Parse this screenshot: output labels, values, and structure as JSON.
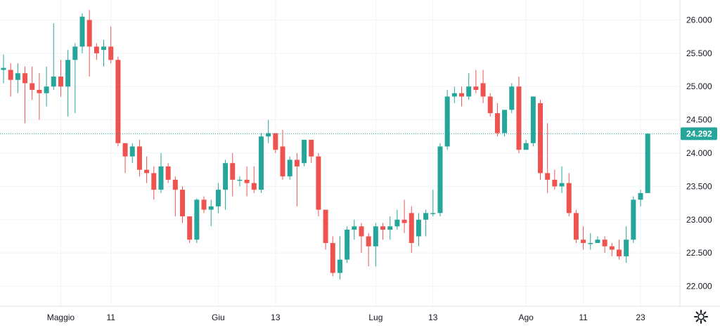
{
  "chart_data": {
    "type": "candlestick",
    "y_range": [
      21.7,
      26.3
    ],
    "y_ticks": [
      {
        "value": 26.0,
        "label": "26.000"
      },
      {
        "value": 25.5,
        "label": "25.500"
      },
      {
        "value": 25.0,
        "label": "25.000"
      },
      {
        "value": 24.5,
        "label": "24.500"
      },
      {
        "value": 24.0,
        "label": "24.000"
      },
      {
        "value": 23.5,
        "label": "23.500"
      },
      {
        "value": 23.0,
        "label": "23.000"
      },
      {
        "value": 22.5,
        "label": "22.500"
      },
      {
        "value": 22.0,
        "label": "22.000"
      }
    ],
    "x_ticks": [
      {
        "index": 8,
        "label": "Maggio"
      },
      {
        "index": 15,
        "label": "11"
      },
      {
        "index": 30,
        "label": "Giu"
      },
      {
        "index": 38,
        "label": "13"
      },
      {
        "index": 52,
        "label": "Lug"
      },
      {
        "index": 60,
        "label": "13"
      },
      {
        "index": 73,
        "label": "Ago"
      },
      {
        "index": 81,
        "label": "11"
      },
      {
        "index": 89,
        "label": "23"
      }
    ],
    "last_price": {
      "value": 24.292,
      "label": "24.292"
    },
    "colors": {
      "up": "#26a69a",
      "down": "#ef5350",
      "grid": "#f0f3fa",
      "axis_text": "#131722"
    },
    "candles": [
      [
        25.25,
        25.28,
        25.48,
        25.05
      ],
      [
        25.25,
        25.1,
        25.35,
        24.85
      ],
      [
        25.1,
        25.2,
        25.35,
        24.9
      ],
      [
        25.2,
        25.05,
        25.3,
        24.45
      ],
      [
        25.05,
        24.95,
        25.3,
        24.8
      ],
      [
        24.95,
        24.9,
        25.2,
        24.5
      ],
      [
        24.9,
        25.0,
        25.3,
        24.7
      ],
      [
        25.0,
        25.15,
        25.95,
        24.95
      ],
      [
        25.15,
        25.0,
        25.4,
        24.85
      ],
      [
        25.0,
        25.4,
        25.55,
        24.55
      ],
      [
        25.4,
        25.6,
        25.65,
        24.6
      ],
      [
        25.6,
        26.05,
        26.1,
        25.5
      ],
      [
        26.0,
        25.6,
        26.15,
        25.15
      ],
      [
        25.6,
        25.5,
        25.65,
        25.4
      ],
      [
        25.55,
        25.6,
        25.7,
        25.3
      ],
      [
        25.6,
        25.4,
        25.9,
        25.35
      ],
      [
        25.4,
        24.15,
        25.45,
        24.1
      ],
      [
        24.15,
        23.95,
        24.15,
        23.7
      ],
      [
        23.95,
        24.1,
        24.15,
        23.85
      ],
      [
        24.1,
        23.75,
        24.2,
        23.65
      ],
      [
        23.75,
        23.7,
        23.95,
        23.55
      ],
      [
        23.7,
        23.45,
        23.8,
        23.3
      ],
      [
        23.45,
        23.8,
        24.0,
        23.4
      ],
      [
        23.8,
        23.6,
        23.85,
        23.55
      ],
      [
        23.6,
        23.45,
        23.65,
        23.05
      ],
      [
        23.45,
        23.05,
        23.5,
        22.95
      ],
      [
        23.05,
        22.7,
        23.05,
        22.65
      ],
      [
        22.7,
        23.3,
        23.32,
        22.65
      ],
      [
        23.3,
        23.15,
        23.35,
        23.1
      ],
      [
        23.15,
        23.2,
        23.3,
        22.9
      ],
      [
        23.2,
        23.45,
        23.55,
        23.1
      ],
      [
        23.45,
        23.85,
        23.9,
        23.15
      ],
      [
        23.85,
        23.6,
        24.0,
        23.35
      ],
      [
        23.6,
        23.6,
        23.65,
        23.5
      ],
      [
        23.6,
        23.55,
        23.8,
        23.35
      ],
      [
        23.55,
        23.45,
        23.8,
        23.4
      ],
      [
        23.45,
        24.25,
        24.3,
        23.4
      ],
      [
        24.25,
        24.3,
        24.5,
        24.15
      ],
      [
        24.3,
        24.05,
        24.3,
        24.0
      ],
      [
        24.1,
        23.65,
        24.35,
        23.6
      ],
      [
        23.65,
        23.9,
        23.95,
        23.6
      ],
      [
        23.9,
        23.8,
        24.0,
        23.2
      ],
      [
        23.85,
        24.2,
        24.2,
        23.8
      ],
      [
        24.2,
        23.95,
        24.2,
        23.85
      ],
      [
        23.95,
        23.15,
        24.0,
        23.05
      ],
      [
        23.15,
        22.65,
        23.15,
        22.55
      ],
      [
        22.65,
        22.2,
        22.75,
        22.15
      ],
      [
        22.2,
        22.4,
        22.75,
        22.1
      ],
      [
        22.4,
        22.85,
        22.9,
        22.35
      ],
      [
        22.85,
        22.9,
        23.0,
        22.7
      ],
      [
        22.9,
        22.75,
        22.95,
        22.5
      ],
      [
        22.75,
        22.6,
        22.8,
        22.3
      ],
      [
        22.6,
        22.9,
        22.95,
        22.3
      ],
      [
        22.9,
        22.85,
        22.95,
        22.7
      ],
      [
        22.85,
        22.9,
        23.05,
        22.7
      ],
      [
        22.9,
        23.0,
        23.15,
        22.85
      ],
      [
        23.0,
        22.95,
        23.3,
        22.8
      ],
      [
        23.1,
        22.65,
        23.2,
        22.5
      ],
      [
        22.75,
        23.0,
        23.1,
        22.6
      ],
      [
        23.0,
        23.1,
        23.15,
        22.75
      ],
      [
        23.1,
        23.1,
        23.45,
        23.05
      ],
      [
        23.1,
        24.1,
        24.15,
        23.05
      ],
      [
        24.1,
        24.85,
        24.95,
        24.05
      ],
      [
        24.85,
        24.9,
        25.0,
        24.75
      ],
      [
        24.9,
        24.85,
        25.0,
        24.7
      ],
      [
        24.85,
        25.0,
        25.2,
        24.8
      ],
      [
        25.0,
        24.95,
        25.25,
        24.9
      ],
      [
        25.05,
        24.85,
        25.25,
        24.75
      ],
      [
        24.85,
        24.6,
        24.9,
        24.55
      ],
      [
        24.6,
        24.3,
        24.75,
        24.25
      ],
      [
        24.3,
        24.65,
        24.65,
        24.25
      ],
      [
        24.65,
        25.0,
        25.05,
        24.6
      ],
      [
        25.0,
        24.05,
        25.15,
        24.0
      ],
      [
        24.05,
        24.15,
        24.2,
        24.05
      ],
      [
        24.15,
        24.85,
        24.85,
        24.1
      ],
      [
        24.75,
        23.7,
        24.8,
        23.6
      ],
      [
        23.7,
        23.6,
        24.45,
        23.4
      ],
      [
        23.6,
        23.5,
        23.75,
        23.45
      ],
      [
        23.5,
        23.55,
        23.8,
        23.4
      ],
      [
        23.55,
        23.1,
        23.7,
        23.05
      ],
      [
        23.1,
        22.7,
        23.15,
        22.65
      ],
      [
        22.7,
        22.65,
        22.9,
        22.55
      ],
      [
        22.65,
        22.65,
        22.8,
        22.55
      ],
      [
        22.65,
        22.7,
        22.75,
        22.65
      ],
      [
        22.7,
        22.6,
        22.75,
        22.5
      ],
      [
        22.6,
        22.55,
        22.65,
        22.45
      ],
      [
        22.55,
        22.45,
        22.7,
        22.4
      ],
      [
        22.45,
        22.7,
        22.9,
        22.35
      ],
      [
        22.7,
        23.3,
        23.35,
        22.65
      ],
      [
        23.3,
        23.4,
        23.45,
        23.2
      ],
      [
        23.4,
        24.292,
        24.3,
        23.4
      ]
    ]
  },
  "ui": {
    "settings_icon": "gear-icon"
  }
}
